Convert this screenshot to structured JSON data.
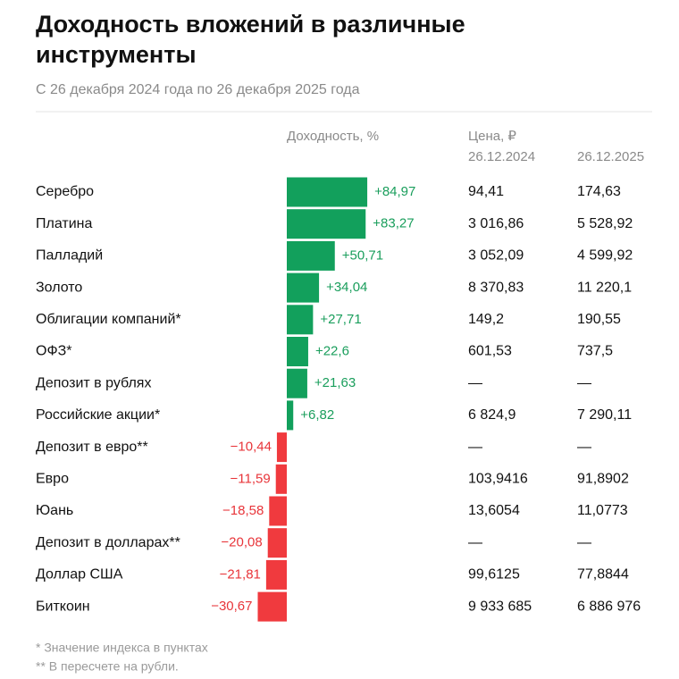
{
  "header": {
    "title_line1": "Доходность вложений в различные",
    "title_line2": "инструменты",
    "subtitle": "С 26 декабря 2024 года по 26 декабря 2025 года"
  },
  "table": {
    "col_return": "Доходность, %",
    "col_price": "Цена, ₽",
    "col_start": "26.12.2024",
    "col_end": "26.12.2025",
    "pos_color": "#12a05c",
    "neg_color": "#f03a3e",
    "rows": [
      {
        "name": "Серебро",
        "value": 84.97,
        "value_label": "+84,97",
        "price_start": "94,41",
        "price_end": "174,63"
      },
      {
        "name": "Платина",
        "value": 83.27,
        "value_label": "+83,27",
        "price_start": "3 016,86",
        "price_end": "5 528,92"
      },
      {
        "name": "Палладий",
        "value": 50.71,
        "value_label": "+50,71",
        "price_start": "3 052,09",
        "price_end": "4 599,92"
      },
      {
        "name": "Золото",
        "value": 34.04,
        "value_label": "+34,04",
        "price_start": "8 370,83",
        "price_end": "11 220,1"
      },
      {
        "name": "Облигации компаний*",
        "value": 27.71,
        "value_label": "+27,71",
        "price_start": "149,2",
        "price_end": "190,55"
      },
      {
        "name": "ОФЗ*",
        "value": 22.6,
        "value_label": "+22,6",
        "price_start": "601,53",
        "price_end": "737,5"
      },
      {
        "name": "Депозит в рублях",
        "value": 21.63,
        "value_label": "+21,63",
        "price_start": "—",
        "price_end": "—"
      },
      {
        "name": "Российские акции*",
        "value": 6.82,
        "value_label": "+6,82",
        "price_start": "6 824,9",
        "price_end": "7 290,11"
      },
      {
        "name": "Депозит в евро**",
        "value": -10.44,
        "value_label": "−10,44",
        "price_start": "—",
        "price_end": "—"
      },
      {
        "name": "Евро",
        "value": -11.59,
        "value_label": "−11,59",
        "price_start": "103,9416",
        "price_end": "91,8902"
      },
      {
        "name": "Юань",
        "value": -18.58,
        "value_label": "−18,58",
        "price_start": "13,6054",
        "price_end": "11,0773"
      },
      {
        "name": "Депозит в долларах**",
        "value": -20.08,
        "value_label": "−20,08",
        "price_start": "—",
        "price_end": "—"
      },
      {
        "name": "Доллар США",
        "value": -21.81,
        "value_label": "−21,81",
        "price_start": "99,6125",
        "price_end": "77,8844"
      },
      {
        "name": "Биткоин",
        "value": -30.67,
        "value_label": "−30,67",
        "price_start": "9 933 685",
        "price_end": "6 886 976"
      }
    ]
  },
  "footnotes": [
    "* Значение индекса в пунктах",
    "** В пересчете на рубли."
  ]
}
